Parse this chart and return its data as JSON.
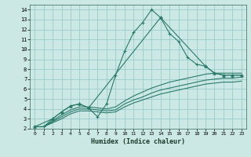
{
  "background_color": "#cce8e4",
  "grid_color": "#99cccc",
  "line_color": "#2a7a6a",
  "xlabel": "Humidex (Indice chaleur)",
  "xlim": [
    -0.5,
    23.5
  ],
  "ylim": [
    2,
    14.5
  ],
  "xticks": [
    0,
    1,
    2,
    3,
    4,
    5,
    6,
    7,
    8,
    9,
    10,
    11,
    12,
    13,
    14,
    15,
    16,
    17,
    18,
    19,
    20,
    21,
    22,
    23
  ],
  "yticks": [
    2,
    3,
    4,
    5,
    6,
    7,
    8,
    9,
    10,
    11,
    12,
    13,
    14
  ],
  "series_main": {
    "x": [
      0,
      1,
      2,
      3,
      4,
      5,
      6,
      7,
      8,
      9,
      10,
      11,
      12,
      13,
      14,
      15,
      16,
      17,
      18,
      19,
      20,
      21,
      22,
      23
    ],
    "y": [
      2.2,
      2.2,
      3.0,
      3.7,
      4.3,
      4.5,
      4.1,
      3.2,
      4.5,
      7.4,
      9.8,
      11.7,
      12.7,
      14.0,
      13.2,
      11.6,
      10.8,
      9.2,
      8.5,
      8.3,
      7.6,
      7.4,
      7.4,
      7.4
    ]
  },
  "series_smooth": [
    {
      "x": [
        0,
        1,
        2,
        3,
        4,
        5,
        6,
        7,
        8,
        9,
        10,
        11,
        12,
        13,
        14,
        15,
        16,
        17,
        18,
        19,
        20,
        21,
        22,
        23
      ],
      "y": [
        2.2,
        2.2,
        2.8,
        3.4,
        3.9,
        4.2,
        4.2,
        4.1,
        4.0,
        4.2,
        4.8,
        5.3,
        5.7,
        6.1,
        6.4,
        6.7,
        6.9,
        7.1,
        7.3,
        7.5,
        7.6,
        7.6,
        7.6,
        7.6
      ]
    },
    {
      "x": [
        0,
        1,
        2,
        3,
        4,
        5,
        6,
        7,
        8,
        9,
        10,
        11,
        12,
        13,
        14,
        15,
        16,
        17,
        18,
        19,
        20,
        21,
        22,
        23
      ],
      "y": [
        2.2,
        2.2,
        2.7,
        3.2,
        3.7,
        4.0,
        4.0,
        3.9,
        3.8,
        3.9,
        4.5,
        4.9,
        5.2,
        5.6,
        5.9,
        6.1,
        6.3,
        6.5,
        6.7,
        6.9,
        7.0,
        7.1,
        7.1,
        7.2
      ]
    },
    {
      "x": [
        0,
        1,
        2,
        3,
        4,
        5,
        6,
        7,
        8,
        9,
        10,
        11,
        12,
        13,
        14,
        15,
        16,
        17,
        18,
        19,
        20,
        21,
        22,
        23
      ],
      "y": [
        2.2,
        2.2,
        2.6,
        3.0,
        3.5,
        3.8,
        3.8,
        3.7,
        3.6,
        3.7,
        4.2,
        4.6,
        4.9,
        5.2,
        5.5,
        5.7,
        5.9,
        6.1,
        6.3,
        6.5,
        6.6,
        6.7,
        6.7,
        6.8
      ]
    }
  ],
  "series_triangle": {
    "x": [
      0,
      2,
      3,
      4,
      5,
      6,
      14,
      19,
      20,
      21,
      22,
      23
    ],
    "y": [
      2.2,
      3.0,
      3.7,
      4.3,
      4.5,
      4.1,
      13.2,
      8.3,
      7.6,
      7.4,
      7.4,
      7.4
    ]
  }
}
